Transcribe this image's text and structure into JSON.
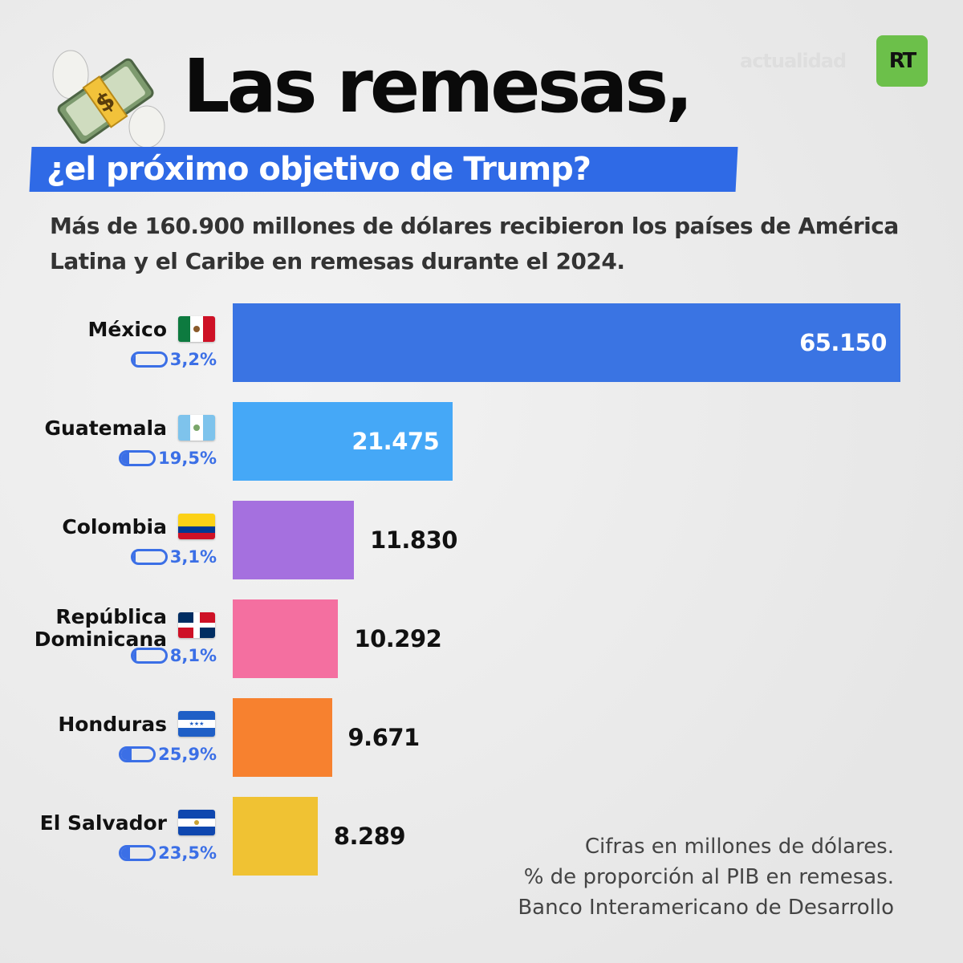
{
  "header": {
    "title": "Las remesas,",
    "subtitle": "¿el próximo objetivo de Trump?",
    "logo_text": "actualidad",
    "logo_badge": "RT",
    "accent": "#2f6ae6",
    "logo_color": "#6cc04a"
  },
  "intro": "Más de 160.900 millones de dólares recibieron los países de América Latina y el Caribe en remesas durante el 2024.",
  "chart_data": {
    "type": "bar",
    "orientation": "horizontal",
    "categories": [
      "México",
      "Guatemala",
      "Colombia",
      "República Dominicana",
      "Honduras",
      "El Salvador"
    ],
    "values": [
      65150,
      21475,
      11830,
      10292,
      9671,
      8289
    ],
    "value_labels": [
      "65.150",
      "21.475",
      "11.830",
      "10.292",
      "9.671",
      "8.289"
    ],
    "gdp_pct": [
      3.2,
      19.5,
      3.1,
      8.1,
      25.9,
      23.5
    ],
    "gdp_pct_labels": [
      "3,2%",
      "19,5%",
      "3,1%",
      "8,1%",
      "25,9%",
      "23,5%"
    ],
    "colors": [
      "#3a74e3",
      "#45a8f7",
      "#a570df",
      "#f46fa0",
      "#f7812f",
      "#f0c233"
    ],
    "flags": [
      "mexico",
      "guatemala",
      "colombia",
      "dominican-republic",
      "honduras",
      "el-salvador"
    ],
    "xlim": [
      0,
      65150
    ]
  },
  "notes": [
    "Cifras en millones de dólares.",
    "% de proporción al PIB en remesas.",
    "Banco Interamericano de Desarrollo"
  ]
}
